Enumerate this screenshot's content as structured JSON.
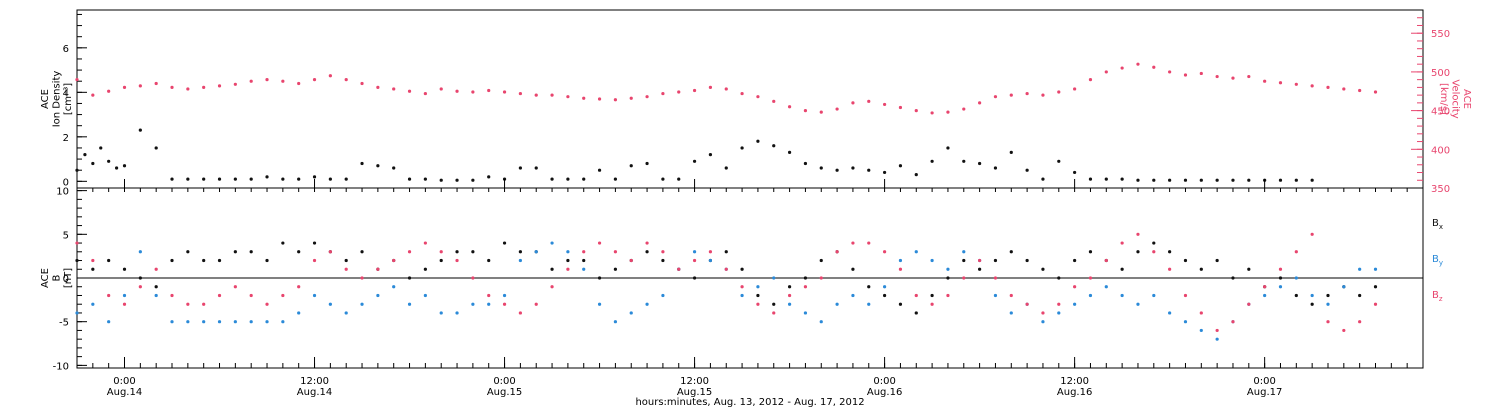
{
  "chart_data": [
    {
      "type": "scatter",
      "panel": "top",
      "ylabel": [
        "ACE",
        "Ion Density",
        "[cm⁻³]"
      ],
      "ylim": [
        -0.3,
        7.7
      ],
      "yticks": [
        0,
        2,
        4,
        6
      ],
      "y2label": [
        "ACE",
        "Velocity",
        "[km/s]"
      ],
      "y2lim": [
        350,
        580
      ],
      "y2ticks": [
        350,
        400,
        450,
        500,
        550
      ],
      "series": [
        {
          "axis": "left",
          "color": "#111111",
          "x": [
            0,
            0.5,
            1,
            1.5,
            2,
            2.5,
            3,
            4,
            5,
            6,
            7,
            8,
            9,
            10,
            11,
            12,
            13,
            14,
            15,
            16,
            17,
            18,
            19,
            20,
            21,
            22,
            23,
            24,
            25,
            26,
            27,
            28,
            29,
            30,
            31,
            32,
            33,
            34,
            35,
            36,
            37,
            38,
            39,
            40,
            41,
            42,
            43,
            44,
            45,
            46,
            47,
            48,
            49,
            50,
            51,
            52,
            53,
            54,
            55,
            56,
            57,
            58,
            59,
            60,
            61,
            62,
            63,
            64,
            65,
            66,
            67,
            68,
            69,
            70,
            71,
            72,
            73,
            74,
            75,
            76,
            77,
            78
          ],
          "y": [
            0.5,
            1.2,
            0.8,
            1.5,
            0.9,
            0.6,
            0.7,
            2.3,
            1.5,
            0.1,
            0.1,
            0.1,
            0.1,
            0.1,
            0.1,
            0.2,
            0.1,
            0.1,
            0.2,
            0.1,
            0.1,
            0.8,
            0.7,
            0.6,
            0.1,
            0.1,
            0.05,
            0.05,
            0.05,
            0.2,
            0.1,
            0.6,
            0.6,
            0.1,
            0.1,
            0.1,
            0.5,
            0.1,
            0.7,
            0.8,
            0.1,
            0.1,
            0.9,
            1.2,
            0.6,
            1.5,
            1.8,
            1.6,
            1.3,
            0.8,
            0.6,
            0.5,
            0.6,
            0.5,
            0.4,
            0.7,
            0.3,
            0.9,
            1.5,
            0.9,
            0.8,
            0.6,
            1.3,
            0.5,
            0.1,
            0.9,
            0.4,
            0.1,
            0.1,
            0.1,
            0.05,
            0.05,
            0.05,
            0.05,
            0.05,
            0.05,
            0.05,
            0.05,
            0.05,
            0.05,
            0.05,
            0.05
          ]
        },
        {
          "axis": "right",
          "color": "#e8456e",
          "x": [
            0,
            1,
            2,
            3,
            4,
            5,
            6,
            7,
            8,
            9,
            10,
            11,
            12,
            13,
            14,
            15,
            16,
            17,
            18,
            19,
            20,
            21,
            22,
            23,
            24,
            25,
            26,
            27,
            28,
            29,
            30,
            31,
            32,
            33,
            34,
            35,
            36,
            37,
            38,
            39,
            40,
            41,
            42,
            43,
            44,
            45,
            46,
            47,
            48,
            49,
            50,
            51,
            52,
            53,
            54,
            55,
            56,
            57,
            58,
            59,
            60,
            61,
            62,
            63,
            64,
            65,
            66,
            67,
            68,
            69,
            70,
            71,
            72,
            73,
            74,
            75,
            76,
            77,
            78,
            79,
            80,
            81,
            82
          ],
          "y": [
            490,
            470,
            475,
            480,
            482,
            485,
            480,
            478,
            480,
            482,
            484,
            488,
            490,
            488,
            485,
            490,
            495,
            490,
            485,
            480,
            478,
            475,
            472,
            478,
            475,
            474,
            476,
            474,
            472,
            470,
            470,
            468,
            466,
            465,
            464,
            466,
            468,
            472,
            474,
            476,
            480,
            478,
            472,
            468,
            462,
            455,
            450,
            448,
            452,
            460,
            462,
            458,
            454,
            450,
            447,
            448,
            452,
            460,
            468,
            470,
            472,
            470,
            474,
            478,
            490,
            500,
            505,
            510,
            506,
            500,
            496,
            498,
            494,
            492,
            494,
            488,
            486,
            484,
            482,
            480,
            478,
            476,
            474
          ]
        }
      ]
    },
    {
      "type": "scatter",
      "panel": "bottom",
      "ylabel": [
        "ACE",
        "B",
        "[nT]"
      ],
      "ylim": [
        -10.3,
        10.3
      ],
      "yticks": [
        -10,
        -5,
        0,
        5,
        10
      ],
      "legend": [
        {
          "label": "B",
          "sub": "x",
          "color": "#111111"
        },
        {
          "label": "B",
          "sub": "y",
          "color": "#2b8ad8"
        },
        {
          "label": "B",
          "sub": "z",
          "color": "#e8456e"
        }
      ],
      "legend_placement": "right",
      "series": [
        {
          "name": "Bx",
          "color": "#111111",
          "x": [
            0,
            1,
            2,
            3,
            4,
            5,
            6,
            7,
            8,
            9,
            10,
            11,
            12,
            13,
            14,
            15,
            16,
            17,
            18,
            19,
            20,
            21,
            22,
            23,
            24,
            25,
            26,
            27,
            28,
            29,
            30,
            31,
            32,
            33,
            34,
            35,
            36,
            37,
            38,
            39,
            40,
            41,
            42,
            43,
            44,
            45,
            46,
            47,
            48,
            49,
            50,
            51,
            52,
            53,
            54,
            55,
            56,
            57,
            58,
            59,
            60,
            61,
            62,
            63,
            64,
            65,
            66,
            67,
            68,
            69,
            70,
            71,
            72,
            73,
            74,
            75,
            76,
            77,
            78,
            79,
            80,
            81,
            82
          ],
          "y": [
            2,
            1,
            2,
            1,
            0,
            -1,
            2,
            3,
            2,
            2,
            3,
            3,
            2,
            4,
            3,
            4,
            3,
            2,
            3,
            1,
            2,
            0,
            1,
            2,
            3,
            3,
            2,
            4,
            3,
            3,
            1,
            2,
            2,
            0,
            1,
            2,
            3,
            2,
            1,
            0,
            2,
            3,
            1,
            -2,
            -3,
            -1,
            0,
            2,
            3,
            1,
            -1,
            -2,
            -3,
            -4,
            -2,
            0,
            2,
            1,
            2,
            3,
            2,
            1,
            0,
            2,
            3,
            2,
            1,
            3,
            4,
            3,
            2,
            1,
            2,
            0,
            1,
            -1,
            0,
            -2,
            -3,
            -2,
            -1,
            -2,
            -1
          ]
        },
        {
          "name": "By",
          "color": "#2b8ad8",
          "x": [
            0,
            1,
            2,
            3,
            4,
            5,
            6,
            7,
            8,
            9,
            10,
            11,
            12,
            13,
            14,
            15,
            16,
            17,
            18,
            19,
            20,
            21,
            22,
            23,
            24,
            25,
            26,
            27,
            28,
            29,
            30,
            31,
            32,
            33,
            34,
            35,
            36,
            37,
            38,
            39,
            40,
            41,
            42,
            43,
            44,
            45,
            46,
            47,
            48,
            49,
            50,
            51,
            52,
            53,
            54,
            55,
            56,
            57,
            58,
            59,
            60,
            61,
            62,
            63,
            64,
            65,
            66,
            67,
            68,
            69,
            70,
            71,
            72,
            73,
            74,
            75,
            76,
            77,
            78,
            79,
            80,
            81,
            82
          ],
          "y": [
            -4,
            -3,
            -5,
            -2,
            3,
            -2,
            -5,
            -5,
            -5,
            -5,
            -5,
            -5,
            -5,
            -5,
            -4,
            -2,
            -3,
            -4,
            -3,
            -2,
            -1,
            -3,
            -2,
            -4,
            -4,
            -3,
            -3,
            -2,
            2,
            3,
            4,
            3,
            1,
            -3,
            -5,
            -4,
            -3,
            -2,
            1,
            3,
            2,
            1,
            -2,
            -1,
            0,
            -3,
            -4,
            -5,
            -3,
            -2,
            -3,
            -1,
            2,
            3,
            2,
            1,
            3,
            2,
            -2,
            -4,
            -3,
            -5,
            -4,
            -3,
            -2,
            -1,
            -2,
            -3,
            -2,
            -4,
            -5,
            -6,
            -7,
            -5,
            -3,
            -2,
            -1,
            0,
            -2,
            -3,
            -1,
            1,
            1
          ]
        },
        {
          "name": "Bz",
          "color": "#e8456e",
          "x": [
            0,
            1,
            2,
            3,
            4,
            5,
            6,
            7,
            8,
            9,
            10,
            11,
            12,
            13,
            14,
            15,
            16,
            17,
            18,
            19,
            20,
            21,
            22,
            23,
            24,
            25,
            26,
            27,
            28,
            29,
            30,
            31,
            32,
            33,
            34,
            35,
            36,
            37,
            38,
            39,
            40,
            41,
            42,
            43,
            44,
            45,
            46,
            47,
            48,
            49,
            50,
            51,
            52,
            53,
            54,
            55,
            56,
            57,
            58,
            59,
            60,
            61,
            62,
            63,
            64,
            65,
            66,
            67,
            68,
            69,
            70,
            71,
            72,
            73,
            74,
            75,
            76,
            77,
            78,
            79,
            80,
            81,
            82
          ],
          "y": [
            4,
            2,
            -2,
            -3,
            -1,
            1,
            -2,
            -3,
            -3,
            -2,
            -1,
            -2,
            -3,
            -2,
            -1,
            2,
            3,
            1,
            0,
            1,
            2,
            3,
            4,
            3,
            2,
            0,
            -2,
            -3,
            -4,
            -3,
            -1,
            1,
            3,
            4,
            3,
            2,
            4,
            3,
            1,
            2,
            3,
            1,
            -1,
            -3,
            -4,
            -2,
            -1,
            0,
            3,
            4,
            4,
            3,
            1,
            -2,
            -3,
            -2,
            0,
            2,
            0,
            -2,
            -3,
            -4,
            -3,
            -1,
            0,
            2,
            4,
            5,
            3,
            1,
            -2,
            -4,
            -6,
            -5,
            -3,
            -1,
            1,
            3,
            5,
            -5,
            -6,
            -5,
            -3
          ]
        }
      ]
    }
  ],
  "x_axis": {
    "xlim": [
      0,
      85
    ],
    "ticks": [
      {
        "x": 3,
        "time": "0:00",
        "date": "Aug.14"
      },
      {
        "x": 15,
        "time": "12:00",
        "date": "Aug.14"
      },
      {
        "x": 27,
        "time": "0:00",
        "date": "Aug.15"
      },
      {
        "x": 39,
        "time": "12:00",
        "date": "Aug.15"
      },
      {
        "x": 51,
        "time": "0:00",
        "date": "Aug.16"
      },
      {
        "x": 63,
        "time": "12:00",
        "date": "Aug.16"
      },
      {
        "x": 75,
        "time": "0:00",
        "date": "Aug.17"
      }
    ],
    "minor_step": 1,
    "xlabel": "hours:minutes, Aug. 13, 2012 - Aug. 17, 2012"
  }
}
